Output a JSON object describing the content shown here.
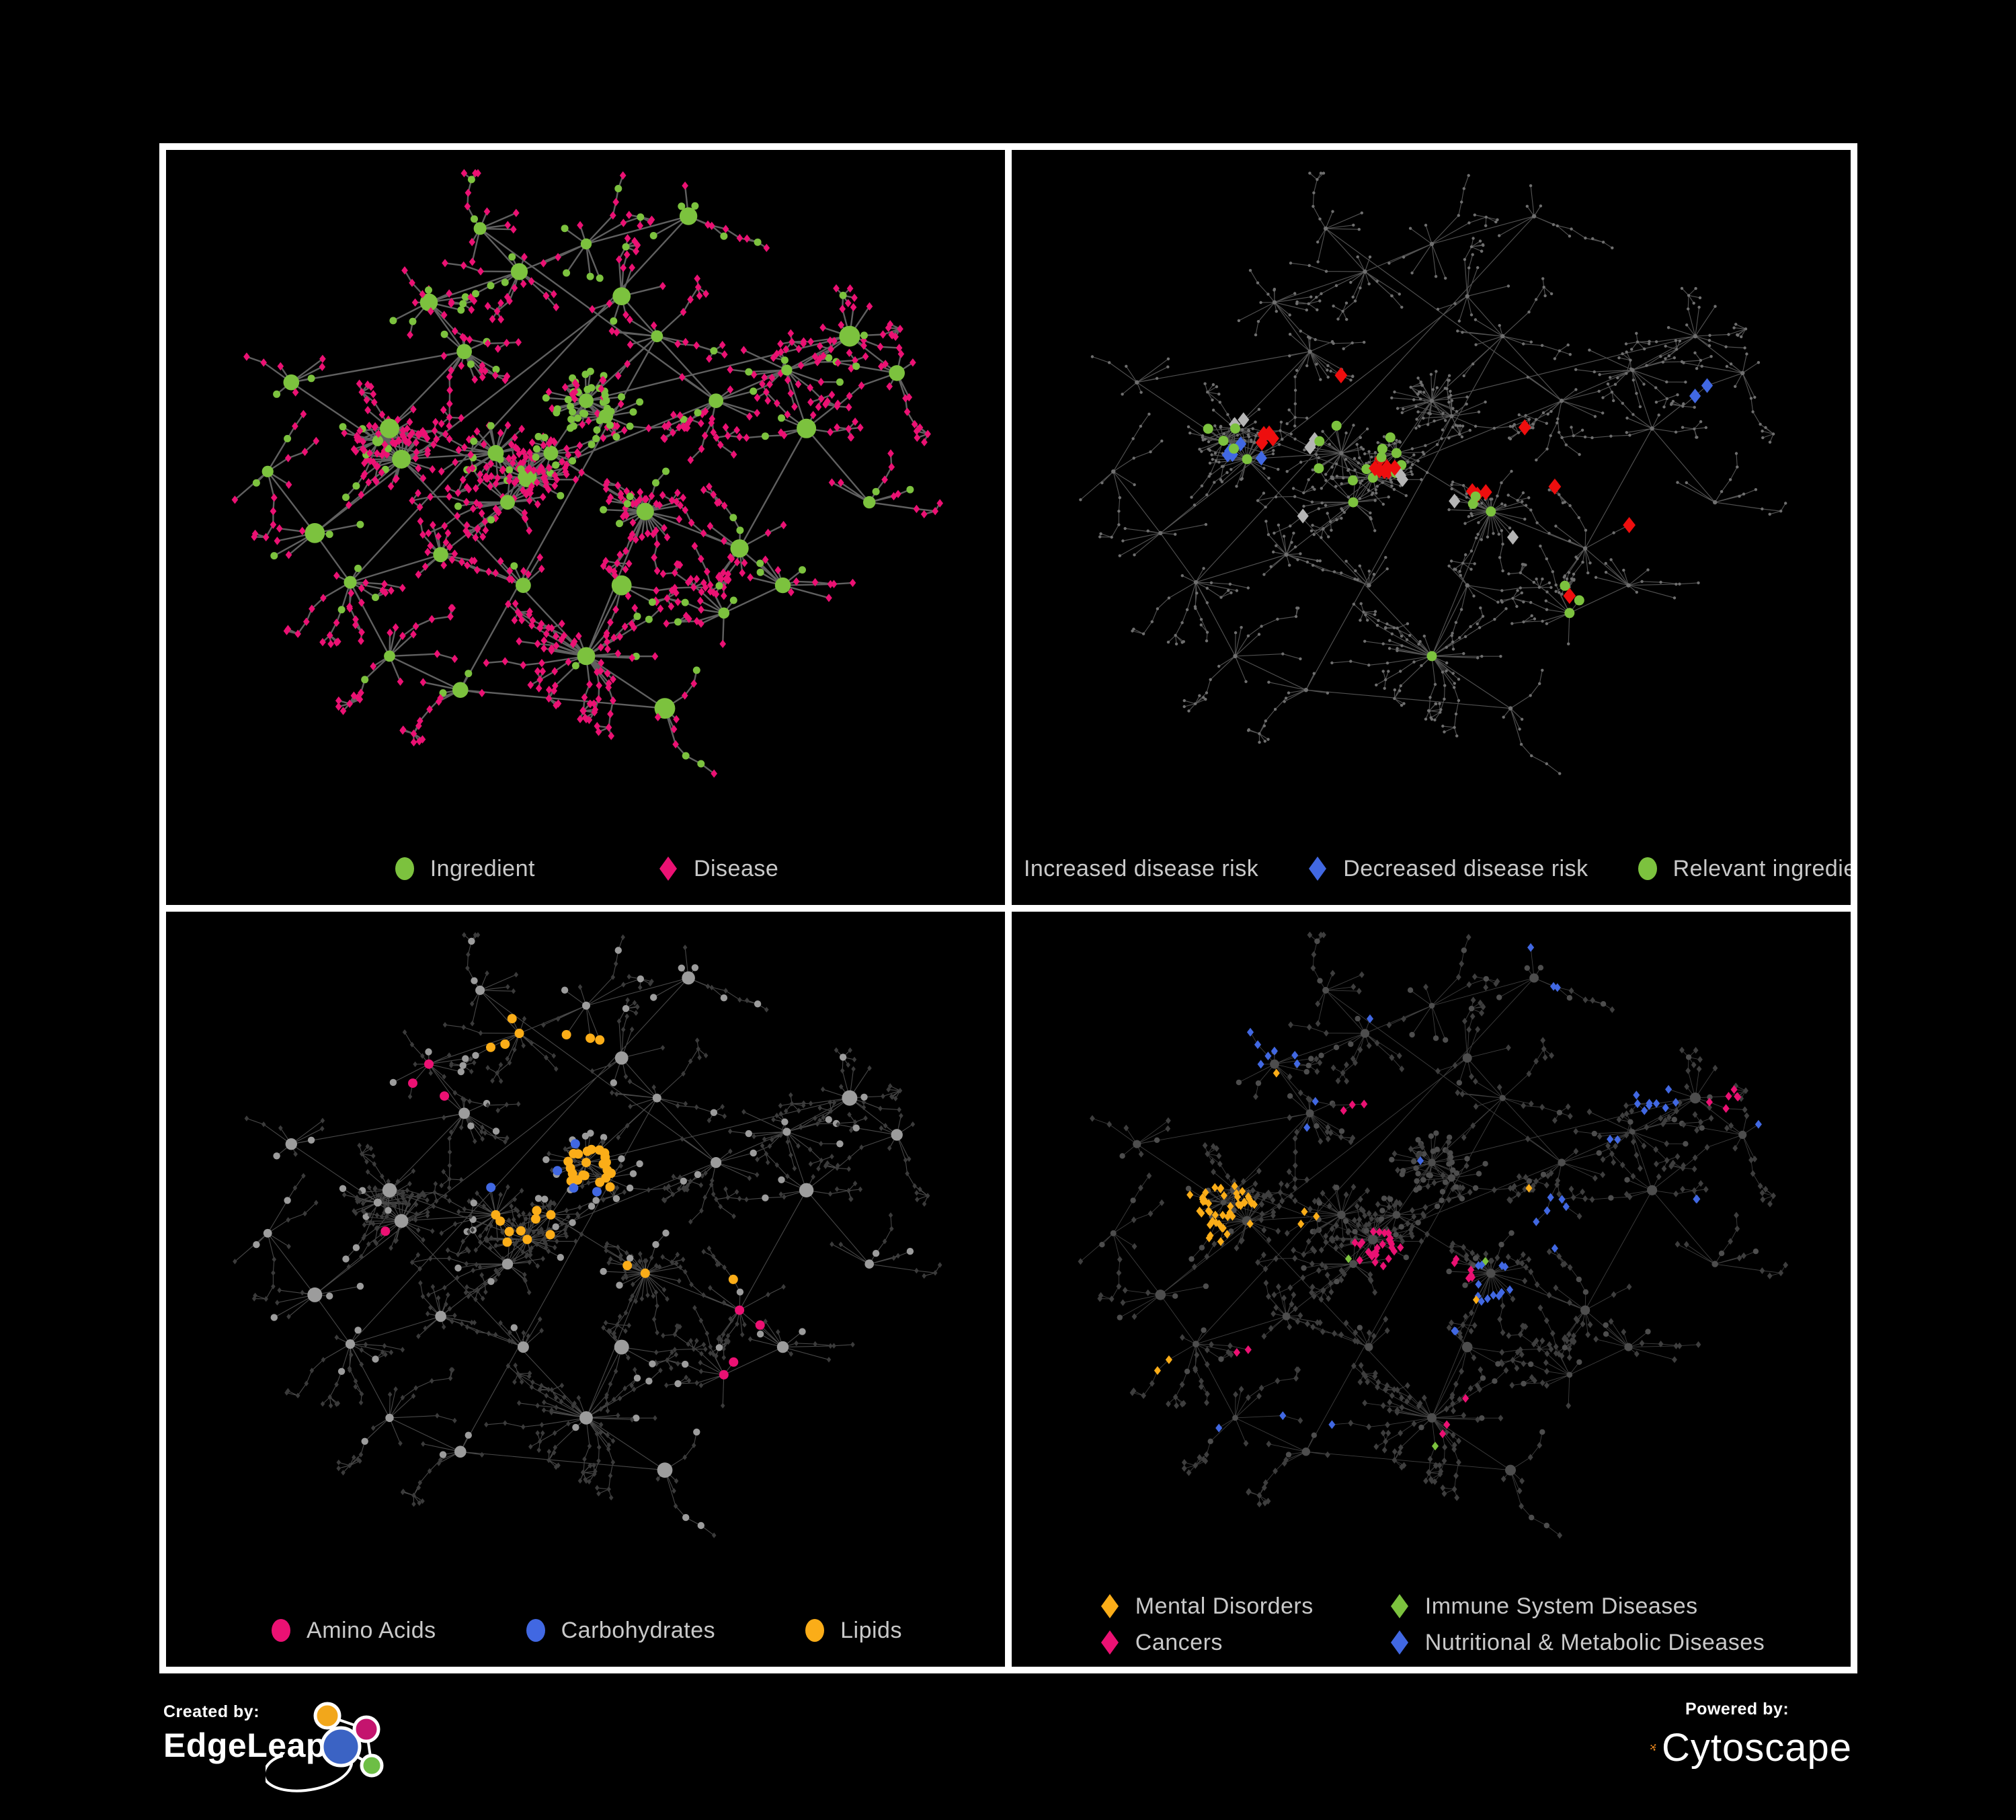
{
  "colors": {
    "green": "#7CC23E",
    "pink": "#EB1173",
    "red": "#EE0E0E",
    "blue": "#4168E2",
    "orange": "#FBAD18",
    "silver": "#B5B5B5",
    "legend_text": "#C9C9C9",
    "edgeleap_orange": "#F2A71B",
    "edgeleap_magenta": "#C4146E",
    "edgeleap_blue": "#3B63C4",
    "edgeleap_green": "#6DBE45",
    "cytoscape_orange": "#E9871E"
  },
  "footer": {
    "created_by": "Created by:",
    "created_brand": "EdgeLeap",
    "powered_by": "Powered by:",
    "powered_brand": "Cytoscape"
  },
  "panels": [
    {
      "id": "ingredient-disease",
      "legend_layout": "row",
      "legend_gap": 180,
      "legend": [
        {
          "shape": "circle",
          "color": "#7CC23E",
          "label": "Ingredient"
        },
        {
          "shape": "diamond",
          "color": "#EB1173",
          "label": "Disease"
        }
      ],
      "style": {
        "mode": "full",
        "edge": "#6A6A6A",
        "edgeW": 2.4,
        "edgeOp": 0.9,
        "circle": "#7CC23E",
        "diamond": "#EB1173",
        "circleScale": 1.15,
        "diamondS": 6.2,
        "leafR": 5.5
      },
      "highlights": []
    },
    {
      "id": "disease-risk",
      "legend_layout": "row",
      "legend_gap": 70,
      "legend": [
        {
          "shape": "diamond",
          "color": "#EE0E0E",
          "label": "Increased disease risk"
        },
        {
          "shape": "diamond",
          "color": "#4168E2",
          "label": "Decreased disease risk"
        },
        {
          "shape": "circle",
          "color": "#7CC23E",
          "label": "Relevant ingredient"
        }
      ],
      "style": {
        "mode": "dots",
        "edge": "#5F5F5F",
        "edgeW": 1.15,
        "edgeOp": 0.85,
        "dot": "#6F6F6F"
      },
      "highlights": [
        {
          "color": "#B5B5B5",
          "shape": "diamond",
          "on": "diamond",
          "size": 11,
          "regions": [
            [
              0.26,
              0.41,
              0.04,
              2
            ],
            [
              0.35,
              0.45,
              0.05,
              2
            ],
            [
              0.46,
              0.5,
              0.04,
              2
            ],
            [
              0.53,
              0.55,
              0.04,
              1
            ],
            [
              0.6,
              0.6,
              0.04,
              1
            ],
            [
              0.33,
              0.56,
              0.04,
              1
            ]
          ]
        },
        {
          "color": "#EE0E0E",
          "shape": "diamond",
          "on": "diamond",
          "size": 12,
          "regions": [
            [
              0.44,
              0.48,
              0.09,
              10
            ],
            [
              0.29,
              0.44,
              0.07,
              5
            ],
            [
              0.56,
              0.52,
              0.06,
              3
            ],
            [
              0.62,
              0.42,
              0.03,
              1
            ],
            [
              0.38,
              0.33,
              0.03,
              1
            ],
            [
              0.66,
              0.5,
              0.03,
              1
            ],
            [
              0.71,
              0.72,
              0.05,
              2
            ],
            [
              0.75,
              0.55,
              0.03,
              1
            ],
            [
              0.17,
              0.47,
              0.02,
              1
            ],
            [
              0.5,
              0.6,
              0.03,
              2
            ]
          ]
        },
        {
          "color": "#4168E2",
          "shape": "diamond",
          "on": "diamond",
          "size": 11,
          "regions": [
            [
              0.255,
              0.46,
              0.05,
              4
            ],
            [
              0.29,
              0.47,
              0.02,
              1
            ],
            [
              0.835,
              0.345,
              0.035,
              2
            ]
          ]
        },
        {
          "color": "#7CC23E",
          "shape": "circle",
          "on": "circle",
          "size": 7.5,
          "regions": [
            [
              0.3,
              0.4,
              0.09,
              7
            ],
            [
              0.44,
              0.47,
              0.08,
              8
            ],
            [
              0.37,
              0.52,
              0.05,
              3
            ],
            [
              0.58,
              0.55,
              0.04,
              3
            ],
            [
              0.61,
              0.45,
              0.02,
              1
            ],
            [
              0.7,
              0.71,
              0.05,
              3
            ],
            [
              0.79,
              0.36,
              0.02,
              1
            ],
            [
              0.5,
              0.78,
              0.02,
              1
            ],
            [
              0.13,
              0.5,
              0.02,
              1
            ],
            [
              0.43,
              0.59,
              0.02,
              1
            ]
          ]
        }
      ]
    },
    {
      "id": "macronutrients",
      "legend_layout": "row",
      "legend_gap": 130,
      "legend": [
        {
          "shape": "circle",
          "color": "#EB1173",
          "label": "Amino Acids"
        },
        {
          "shape": "circle",
          "color": "#4168E2",
          "label": "Carbohydrates"
        },
        {
          "shape": "circle",
          "color": "#FBAD18",
          "label": "Lipids"
        }
      ],
      "style": {
        "mode": "full",
        "edge": "#B3B3B3",
        "edgeW": 1.1,
        "edgeOp": 0.4,
        "circle": "#9C9C9C",
        "diamond": "#3B3B3B",
        "circleScale": 0.85,
        "diamondS": 4.2,
        "leafR": 5.2
      },
      "highlights": [
        {
          "color": "#FBAD18",
          "shape": "circle",
          "on": "circle",
          "size": 7,
          "regions": [
            [
              0.51,
              0.385,
              0.06,
              22
            ],
            [
              0.42,
              0.47,
              0.07,
              10
            ],
            [
              0.44,
              0.19,
              0.08,
              8
            ],
            [
              0.57,
              0.56,
              0.03,
              3
            ],
            [
              0.66,
              0.55,
              0.05,
              4
            ],
            [
              0.6,
              0.44,
              0.03,
              2
            ],
            [
              0.42,
              0.6,
              0.04,
              3
            ],
            [
              0.25,
              0.065,
              0.02,
              1
            ],
            [
              0.43,
              0.09,
              0.02,
              1
            ],
            [
              0.66,
              0.345,
              0.02,
              1
            ],
            [
              0.87,
              0.3,
              0.02,
              1
            ],
            [
              0.72,
              0.6,
              0.02,
              1
            ],
            [
              0.6,
              0.79,
              0.02,
              1
            ],
            [
              0.53,
              0.12,
              0.02,
              1
            ]
          ]
        },
        {
          "color": "#EB1173",
          "shape": "circle",
          "on": "circle",
          "size": 7,
          "regions": [
            [
              0.3,
              0.24,
              0.04,
              2
            ],
            [
              0.24,
              0.18,
              0.03,
              1
            ],
            [
              0.33,
              0.27,
              0.02,
              1
            ],
            [
              0.24,
              0.4,
              0.02,
              1
            ],
            [
              0.25,
              0.48,
              0.02,
              1
            ],
            [
              0.12,
              0.5,
              0.02,
              1
            ],
            [
              0.28,
              0.61,
              0.02,
              1
            ],
            [
              0.36,
              0.66,
              0.02,
              1
            ],
            [
              0.47,
              0.61,
              0.02,
              1
            ],
            [
              0.26,
              0.75,
              0.03,
              2
            ],
            [
              0.66,
              0.02,
              0.02,
              1
            ],
            [
              0.79,
              0.26,
              0.02,
              1
            ],
            [
              0.94,
              0.27,
              0.02,
              1
            ],
            [
              0.7,
              0.63,
              0.04,
              2
            ],
            [
              0.71,
              0.72,
              0.04,
              3
            ],
            [
              0.3,
              0.42,
              0.02,
              1
            ]
          ]
        },
        {
          "color": "#4168E2",
          "shape": "circle",
          "on": "circle",
          "size": 7,
          "regions": [
            [
              0.5,
              0.38,
              0.04,
              4
            ],
            [
              0.41,
              0.28,
              0.02,
              1
            ],
            [
              0.28,
              0.06,
              0.02,
              1
            ],
            [
              0.06,
              0.24,
              0.02,
              1
            ],
            [
              0.38,
              0.4,
              0.02,
              1
            ],
            [
              0.68,
              0.55,
              0.02,
              1
            ],
            [
              0.44,
              0.26,
              0.02,
              1
            ],
            [
              0.52,
              0.42,
              0.02,
              1
            ]
          ]
        }
      ]
    },
    {
      "id": "disease-classes",
      "legend_layout": "grid",
      "legend": [
        {
          "shape": "diamond",
          "color": "#FBAD18",
          "label": "Mental Disorders"
        },
        {
          "shape": "diamond",
          "color": "#7CC23E",
          "label": "Immune System Diseases"
        },
        {
          "shape": "diamond",
          "color": "#EB1173",
          "label": "Cancers"
        },
        {
          "shape": "diamond",
          "color": "#4168E2",
          "label": "Nutritional & Metabolic Diseases"
        }
      ],
      "style": {
        "mode": "full",
        "edge": "#B3B3B3",
        "edgeW": 0.9,
        "edgeOp": 0.35,
        "circle": "#4D4D4D",
        "diamond": "#3E3E3E",
        "circleScale": 0.6,
        "diamondS": 5,
        "leafR": 4.2
      },
      "highlights": [
        {
          "color": "#FBAD18",
          "shape": "diamond",
          "on": "diamond",
          "size": 6.5,
          "regions": [
            [
              0.225,
              0.455,
              0.095,
              46
            ],
            [
              0.13,
              0.31,
              0.02,
              1
            ],
            [
              0.3,
              0.24,
              0.02,
              1
            ],
            [
              0.15,
              0.7,
              0.03,
              2
            ],
            [
              0.62,
              0.41,
              0.02,
              1
            ],
            [
              0.48,
              0.645,
              0.02,
              1
            ],
            [
              0.55,
              0.6,
              0.02,
              1
            ],
            [
              0.345,
              0.47,
              0.03,
              3
            ]
          ]
        },
        {
          "color": "#EB1173",
          "shape": "diamond",
          "on": "diamond",
          "size": 6.5,
          "regions": [
            [
              0.43,
              0.52,
              0.09,
              26
            ],
            [
              0.5,
              0.57,
              0.06,
              6
            ],
            [
              0.87,
              0.27,
              0.05,
              6
            ],
            [
              0.42,
              0.28,
              0.04,
              3
            ],
            [
              0.26,
              0.6,
              0.02,
              1
            ],
            [
              0.26,
              0.68,
              0.03,
              2
            ],
            [
              0.75,
              0.61,
              0.02,
              1
            ],
            [
              0.5,
              0.8,
              0.03,
              2
            ],
            [
              0.55,
              0.77,
              0.02,
              1
            ],
            [
              0.23,
              0.12,
              0.02,
              1
            ],
            [
              0.59,
              0.38,
              0.02,
              1
            ]
          ]
        },
        {
          "color": "#4168E2",
          "shape": "diamond",
          "on": "diamond",
          "size": 6.5,
          "regions": [
            [
              0.57,
              0.575,
              0.05,
              12
            ],
            [
              0.64,
              0.47,
              0.06,
              7
            ],
            [
              0.78,
              0.25,
              0.08,
              9
            ],
            [
              0.27,
              0.2,
              0.1,
              7
            ],
            [
              0.63,
              0.06,
              0.05,
              4
            ],
            [
              0.48,
              0.37,
              0.02,
              1
            ],
            [
              0.52,
              0.66,
              0.03,
              2
            ],
            [
              0.38,
              0.8,
              0.02,
              1
            ],
            [
              0.3,
              0.8,
              0.02,
              1
            ],
            [
              0.24,
              0.82,
              0.02,
              1
            ],
            [
              0.85,
              0.47,
              0.04,
              2
            ],
            [
              0.91,
              0.33,
              0.03,
              2
            ],
            [
              0.73,
              0.33,
              0.03,
              2
            ],
            [
              0.35,
              0.3,
              0.03,
              2
            ],
            [
              0.44,
              0.12,
              0.03,
              2
            ]
          ]
        },
        {
          "color": "#7CC23E",
          "shape": "diamond",
          "on": "diamond",
          "size": 6.5,
          "regions": [
            [
              0.41,
              0.26,
              0.02,
              1
            ],
            [
              0.51,
              0.26,
              0.02,
              1
            ],
            [
              0.3,
              0.32,
              0.02,
              1
            ],
            [
              0.33,
              0.465,
              0.02,
              1
            ],
            [
              0.4,
              0.545,
              0.02,
              1
            ],
            [
              0.57,
              0.54,
              0.02,
              1
            ],
            [
              0.25,
              0.72,
              0.02,
              1
            ],
            [
              0.67,
              0.79,
              0.02,
              1
            ],
            [
              0.74,
              0.74,
              0.02,
              1
            ],
            [
              0.5,
              0.82,
              0.02,
              1
            ]
          ]
        }
      ]
    }
  ]
}
